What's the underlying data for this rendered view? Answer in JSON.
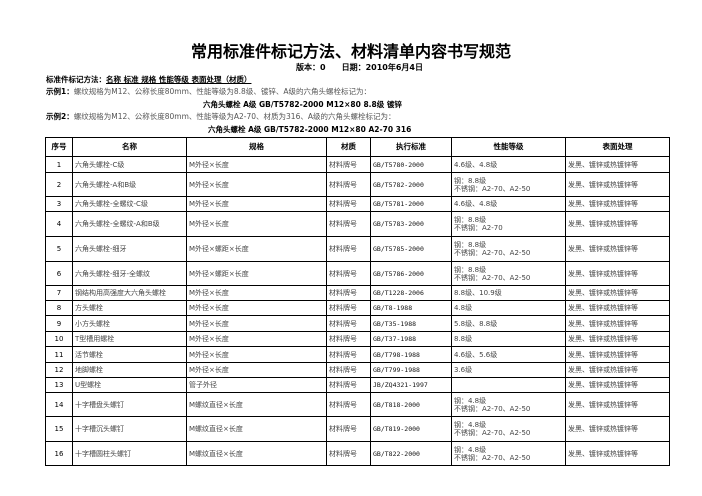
{
  "title": "常用标准件标记方法、材料清单内容书写规范",
  "version": "版本：0",
  "date": "日期：2010年6月4日",
  "method_label": "标准件标记方法：",
  "method_value": "名称 标准 规格 性能等级 表面处理（材质）",
  "example1_label": "示例1：",
  "example1_text": "螺纹规格为M12、公称长度80mm、性能等级为8.8级、镀锌、A级的六角头螺栓标记为：",
  "example1_mark": "六角头螺栓 A级 GB/T5782-2000 M12×80  8.8级 镀锌",
  "example2_label": "示例2：",
  "example2_text": "螺纹规格为M12、公称长度80mm、性能等级为A2-70、材质为316、A级的六角头螺栓标记为：",
  "example2_mark": "六角头螺栓 A级 GB/T5782-2000 M12×80 A2-70 316",
  "table": {
    "headers": [
      "序号",
      "名称",
      "规格",
      "材质",
      "执行标准",
      "性能等级",
      "表面处理"
    ],
    "rows": [
      {
        "no": "1",
        "name": "六角头螺栓-C级",
        "spec": "M外径×长度",
        "mat": "材料牌号",
        "std": "GB/T5780-2000",
        "grade": [
          "4.6级、4.8级"
        ],
        "surf": "发黑、镀锌或热镀锌等"
      },
      {
        "no": "2",
        "name": "六角头螺栓-A和B级",
        "spec": "M外径×长度",
        "mat": "材料牌号",
        "std": "GB/T5782-2000",
        "grade": [
          "钢：8.8级",
          "不锈钢：A2-70、A2-50"
        ],
        "surf": "发黑、镀锌或热镀锌等"
      },
      {
        "no": "3",
        "name": "六角头螺栓-全螺纹-C级",
        "spec": "M外径×长度",
        "mat": "材料牌号",
        "std": "GB/T5781-2000",
        "grade": [
          "4.6级、4.8级"
        ],
        "surf": "发黑、镀锌或热镀锌等"
      },
      {
        "no": "4",
        "name": "六角头螺栓-全螺纹-A和B级",
        "spec": "M外径×长度",
        "mat": "材料牌号",
        "std": "GB/T5783-2000",
        "grade": [
          "钢：8.8级",
          "不锈钢：A2-70"
        ],
        "surf": "发黑、镀锌或热镀锌等"
      },
      {
        "no": "5",
        "name": "六角头螺栓-细牙",
        "spec": "M外径×螺距×长度",
        "mat": "材料牌号",
        "std": "GB/T5785-2000",
        "grade": [
          "钢：8.8级",
          "不锈钢：A2-70、A2-50"
        ],
        "surf": "发黑、镀锌或热镀锌等"
      },
      {
        "no": "6",
        "name": "六角头螺栓-细牙-全螺纹",
        "spec": "M外径×螺距×长度",
        "mat": "材料牌号",
        "std": "GB/T5786-2000",
        "grade": [
          "钢：8.8级",
          "不锈钢：A2-70、A2-50"
        ],
        "surf": "发黑、镀锌或热镀锌等"
      },
      {
        "no": "7",
        "name": "钢结构用高强度大六角头螺栓",
        "spec": "M外径×长度",
        "mat": "材料牌号",
        "std": "GB/T1228-2006",
        "grade": [
          "8.8级、10.9级"
        ],
        "surf": "发黑、镀锌或热镀锌等"
      },
      {
        "no": "8",
        "name": "方头螺栓",
        "spec": "M外径×长度",
        "mat": "材料牌号",
        "std": "GB/T8-1988",
        "grade": [
          "4.8级"
        ],
        "surf": "发黑、镀锌或热镀锌等"
      },
      {
        "no": "9",
        "name": "小方头螺栓",
        "spec": "M外径×长度",
        "mat": "材料牌号",
        "std": "GB/T35-1988",
        "grade": [
          "5.8级、8.8级"
        ],
        "surf": "发黑、镀锌或热镀锌等"
      },
      {
        "no": "10",
        "name": "T型槽用螺栓",
        "spec": "M外径×长度",
        "mat": "材料牌号",
        "std": "GB/T37-1988",
        "grade": [
          "8.8级"
        ],
        "surf": "发黑、镀锌或热镀锌等"
      },
      {
        "no": "11",
        "name": "活节螺栓",
        "spec": "M外径×长度",
        "mat": "材料牌号",
        "std": "GB/T798-1988",
        "grade": [
          "4.6级、5.6级"
        ],
        "surf": "发黑、镀锌或热镀锌等"
      },
      {
        "no": "12",
        "name": "地脚螺栓",
        "spec": "M外径×长度",
        "mat": "材料牌号",
        "std": "GB/T799-1988",
        "grade": [
          "3.6级"
        ],
        "surf": "发黑、镀锌或热镀锌等"
      },
      {
        "no": "13",
        "name": "U型螺栓",
        "spec": "管子外径",
        "mat": "材料牌号",
        "std": "JB/ZQ4321-1997",
        "grade": [
          ""
        ],
        "surf": "发黑、镀锌或热镀锌等"
      },
      {
        "no": "14",
        "name": "十字槽盘头螺钉",
        "spec": "M螺纹直径×长度",
        "mat": "材料牌号",
        "std": "GB/T818-2000",
        "grade": [
          "钢：4.8级",
          "不锈钢：A2-70、A2-50"
        ],
        "surf": "发黑、镀锌或热镀锌等"
      },
      {
        "no": "15",
        "name": "十字槽沉头螺钉",
        "spec": "M螺纹直径×长度",
        "mat": "材料牌号",
        "std": "GB/T819-2000",
        "grade": [
          "钢：4.8级",
          "不锈钢：A2-70、A2-50"
        ],
        "surf": "发黑、镀锌或热镀锌等"
      },
      {
        "no": "16",
        "name": "十字槽圆柱头螺钉",
        "spec": "M螺纹直径×长度",
        "mat": "材料牌号",
        "std": "GB/T822-2000",
        "grade": [
          "钢：4.8级",
          "不锈钢：A2-70、A2-50"
        ],
        "surf": "发黑、镀锌或热镀锌等"
      }
    ]
  }
}
